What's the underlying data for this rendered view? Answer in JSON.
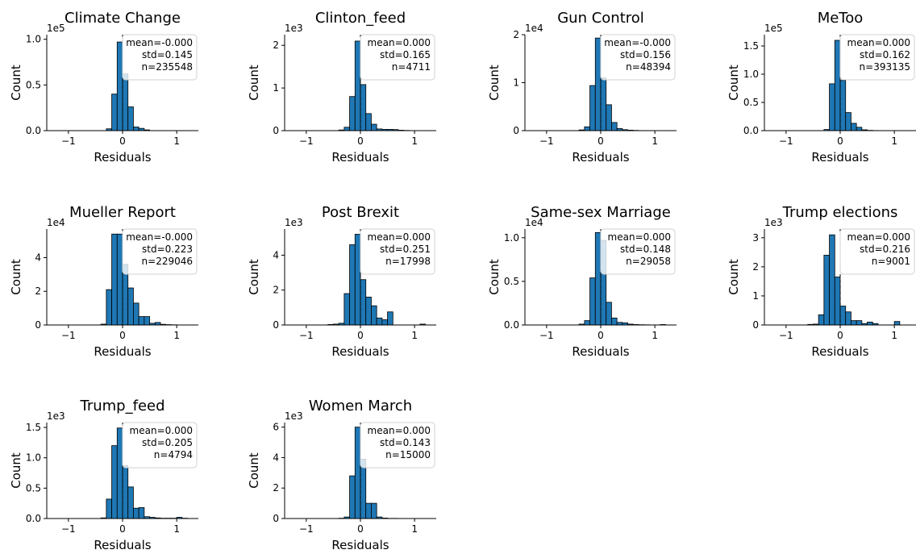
{
  "colors": {
    "bar_fill": "#1f77b4",
    "bar_edge": "#000000",
    "mean_line": "#000000"
  },
  "chart_data": [
    {
      "type": "bar",
      "title": "Climate Change",
      "xlabel": "Residuals",
      "ylabel": "Count",
      "multiplier": "1e5",
      "scale": 100000,
      "ylim": [
        0,
        105000
      ],
      "xlim": [
        -1.4,
        1.4
      ],
      "xticks": [
        -1,
        0,
        1
      ],
      "yticks": [
        0,
        0.5,
        1.0
      ],
      "ytick_labels": [
        "0.0",
        "0.5",
        "1.0"
      ],
      "bin_edges": [
        -0.3,
        -0.2,
        -0.1,
        0.0,
        0.1,
        0.2,
        0.3,
        0.4,
        0.5
      ],
      "values": [
        2000,
        40000,
        97000,
        62000,
        26000,
        4000,
        2500,
        800
      ],
      "stats": {
        "mean": "mean=-0.000",
        "std": "std=0.145",
        "n": "n=235548"
      }
    },
    {
      "type": "bar",
      "title": "Clinton_feed",
      "xlabel": "Residuals",
      "ylabel": "Count",
      "multiplier": "1e3",
      "scale": 1000,
      "ylim": [
        0,
        2250
      ],
      "xlim": [
        -1.4,
        1.4
      ],
      "xticks": [
        -1,
        0,
        1
      ],
      "yticks": [
        0,
        1,
        2
      ],
      "ytick_labels": [
        "0",
        "1",
        "2"
      ],
      "bin_edges": [
        -0.4,
        -0.3,
        -0.2,
        -0.1,
        0.0,
        0.1,
        0.2,
        0.3,
        0.4,
        0.5,
        0.6,
        0.7,
        0.8,
        0.9
      ],
      "values": [
        15,
        80,
        800,
        2100,
        1080,
        400,
        150,
        40,
        30,
        30,
        25,
        10,
        5
      ],
      "stats": {
        "mean": "mean=0.000",
        "std": "std=0.165",
        "n": "n=4711"
      }
    },
    {
      "type": "bar",
      "title": "Gun Control",
      "xlabel": "Residuals",
      "ylabel": "Count",
      "multiplier": "1e4",
      "scale": 10000,
      "ylim": [
        0,
        20000
      ],
      "xlim": [
        -1.4,
        1.4
      ],
      "xticks": [
        -1,
        0,
        1
      ],
      "yticks": [
        0,
        1,
        2
      ],
      "ytick_labels": [
        "0",
        "1",
        "2"
      ],
      "bin_edges": [
        -0.4,
        -0.3,
        -0.2,
        -0.1,
        0.0,
        0.1,
        0.2,
        0.3,
        0.4,
        0.5,
        0.6,
        0.7,
        0.8
      ],
      "values": [
        150,
        800,
        9400,
        19300,
        11000,
        5400,
        1700,
        450,
        200,
        100,
        50,
        20
      ],
      "stats": {
        "mean": "mean=-0.000",
        "std": "std=0.156",
        "n": "n=48394"
      }
    },
    {
      "type": "bar",
      "title": "MeToo",
      "xlabel": "Residuals",
      "ylabel": "Count",
      "multiplier": "1e5",
      "scale": 100000,
      "ylim": [
        0,
        170000
      ],
      "xlim": [
        -1.4,
        1.4
      ],
      "xticks": [
        -1,
        0,
        1
      ],
      "yticks": [
        0,
        0.5,
        1.0,
        1.5
      ],
      "ytick_labels": [
        "0.0",
        "0.5",
        "1.0",
        "1.5"
      ],
      "bin_edges": [
        -0.3,
        -0.2,
        -0.1,
        0.0,
        0.1,
        0.2,
        0.3,
        0.4,
        0.5,
        0.6,
        0.7
      ],
      "values": [
        2000,
        83000,
        160000,
        89000,
        32000,
        13000,
        6000,
        1500,
        500,
        200
      ],
      "stats": {
        "mean": "mean=0.000",
        "std": "std=0.162",
        "n": "n=393135"
      }
    },
    {
      "type": "bar",
      "title": "Mueller Report",
      "xlabel": "Residuals",
      "ylabel": "Count",
      "multiplier": "1e4",
      "scale": 10000,
      "ylim": [
        0,
        57000
      ],
      "xlim": [
        -1.4,
        1.4
      ],
      "xticks": [
        -1,
        0,
        1
      ],
      "yticks": [
        0,
        2,
        4
      ],
      "ytick_labels": [
        "0",
        "2",
        "4"
      ],
      "bin_edges": [
        -0.4,
        -0.3,
        -0.2,
        -0.1,
        0.0,
        0.1,
        0.2,
        0.3,
        0.4,
        0.5,
        0.6,
        0.7,
        0.8,
        0.9,
        1.0
      ],
      "values": [
        500,
        21000,
        54000,
        54000,
        36000,
        22000,
        13000,
        5000,
        5000,
        1000,
        1500,
        400,
        200,
        100
      ],
      "stats": {
        "mean": "mean=-0.000",
        "std": "std=0.223",
        "n": "n=229046"
      }
    },
    {
      "type": "bar",
      "title": "Post Brexit",
      "xlabel": "Residuals",
      "ylabel": "Count",
      "multiplier": "1e3",
      "scale": 1000,
      "ylim": [
        0,
        5500
      ],
      "xlim": [
        -1.4,
        1.4
      ],
      "xticks": [
        -1,
        0,
        1
      ],
      "yticks": [
        0,
        2,
        4
      ],
      "ytick_labels": [
        "0",
        "2",
        "4"
      ],
      "bin_edges": [
        -0.6,
        -0.5,
        -0.4,
        -0.3,
        -0.2,
        -0.1,
        0.0,
        0.1,
        0.2,
        0.3,
        0.4,
        0.5,
        0.6,
        0.7,
        0.8,
        0.9,
        1.0,
        1.1,
        1.2
      ],
      "values": [
        30,
        50,
        100,
        1800,
        4600,
        5200,
        2600,
        1600,
        1100,
        400,
        300,
        750,
        0,
        0,
        0,
        0,
        0,
        50
      ],
      "stats": {
        "mean": "mean=0.000",
        "std": "std=0.251",
        "n": "n=17998"
      }
    },
    {
      "type": "bar",
      "title": "Same-sex Marriage",
      "xlabel": "Residuals",
      "ylabel": "Count",
      "multiplier": "1e4",
      "scale": 10000,
      "ylim": [
        0,
        11000
      ],
      "xlim": [
        -1.4,
        1.4
      ],
      "xticks": [
        -1,
        0,
        1
      ],
      "yticks": [
        0,
        0.5,
        1.0
      ],
      "ytick_labels": [
        "0.0",
        "0.5",
        "1.0"
      ],
      "bin_edges": [
        -0.4,
        -0.3,
        -0.2,
        -0.1,
        0.0,
        0.1,
        0.2,
        0.3,
        0.4,
        0.5,
        0.6,
        0.7,
        0.8,
        0.9,
        1.0,
        1.1,
        1.2
      ],
      "values": [
        100,
        500,
        5400,
        10600,
        9700,
        2600,
        800,
        300,
        250,
        100,
        50,
        30,
        20,
        10,
        10,
        50
      ],
      "stats": {
        "mean": "mean=0.000",
        "std": "std=0.148",
        "n": "n=29058"
      }
    },
    {
      "type": "bar",
      "title": "Trump elections",
      "xlabel": "Residuals",
      "ylabel": "Count",
      "multiplier": "1e3",
      "scale": 1000,
      "ylim": [
        0,
        3300
      ],
      "xlim": [
        -1.4,
        1.4
      ],
      "xticks": [
        -1,
        0,
        1
      ],
      "yticks": [
        0,
        1,
        2,
        3
      ],
      "ytick_labels": [
        "0",
        "1",
        "2",
        "3"
      ],
      "bin_edges": [
        -0.6,
        -0.5,
        -0.4,
        -0.3,
        -0.2,
        -0.1,
        0.0,
        0.1,
        0.2,
        0.3,
        0.4,
        0.5,
        0.6,
        0.7,
        0.8,
        0.9,
        1.0,
        1.1,
        1.2
      ],
      "values": [
        20,
        30,
        350,
        2400,
        3100,
        1650,
        650,
        450,
        150,
        150,
        50,
        100,
        50,
        0,
        0,
        0,
        120,
        0
      ],
      "stats": {
        "mean": "mean=0.000",
        "std": "std=0.216",
        "n": "n=9001"
      }
    },
    {
      "type": "bar",
      "title": "Trump_feed",
      "xlabel": "Residuals",
      "ylabel": "Count",
      "multiplier": "1e3",
      "scale": 1000,
      "ylim": [
        0,
        1580
      ],
      "xlim": [
        -1.4,
        1.4
      ],
      "xticks": [
        -1,
        0,
        1
      ],
      "yticks": [
        0,
        0.5,
        1.0,
        1.5
      ],
      "ytick_labels": [
        "0.0",
        "0.5",
        "1.0",
        "1.5"
      ],
      "bin_edges": [
        -0.4,
        -0.3,
        -0.2,
        -0.1,
        0.0,
        0.1,
        0.2,
        0.3,
        0.4,
        0.5,
        0.6,
        0.7,
        0.8,
        0.9,
        1.0,
        1.1,
        1.2
      ],
      "values": [
        10,
        320,
        1200,
        1490,
        870,
        520,
        170,
        180,
        30,
        20,
        10,
        5,
        5,
        5,
        20,
        5
      ],
      "stats": {
        "mean": "mean=0.000",
        "std": "std=0.205",
        "n": "n=4794"
      }
    },
    {
      "type": "bar",
      "title": "Women March",
      "xlabel": "Residuals",
      "ylabel": "Count",
      "multiplier": "1e3",
      "scale": 1000,
      "ylim": [
        0,
        6300
      ],
      "xlim": [
        -1.4,
        1.4
      ],
      "xticks": [
        -1,
        0,
        1
      ],
      "yticks": [
        0,
        2,
        4,
        6
      ],
      "ytick_labels": [
        "0",
        "2",
        "4",
        "6"
      ],
      "bin_edges": [
        -0.4,
        -0.3,
        -0.2,
        -0.1,
        0.0,
        0.1,
        0.2,
        0.3,
        0.4,
        0.5,
        0.6,
        0.7
      ],
      "values": [
        20,
        100,
        2800,
        6000,
        3900,
        1000,
        1000,
        100,
        30,
        10,
        10
      ],
      "stats": {
        "mean": "mean=0.000",
        "std": "std=0.143",
        "n": "n=15000"
      }
    }
  ]
}
